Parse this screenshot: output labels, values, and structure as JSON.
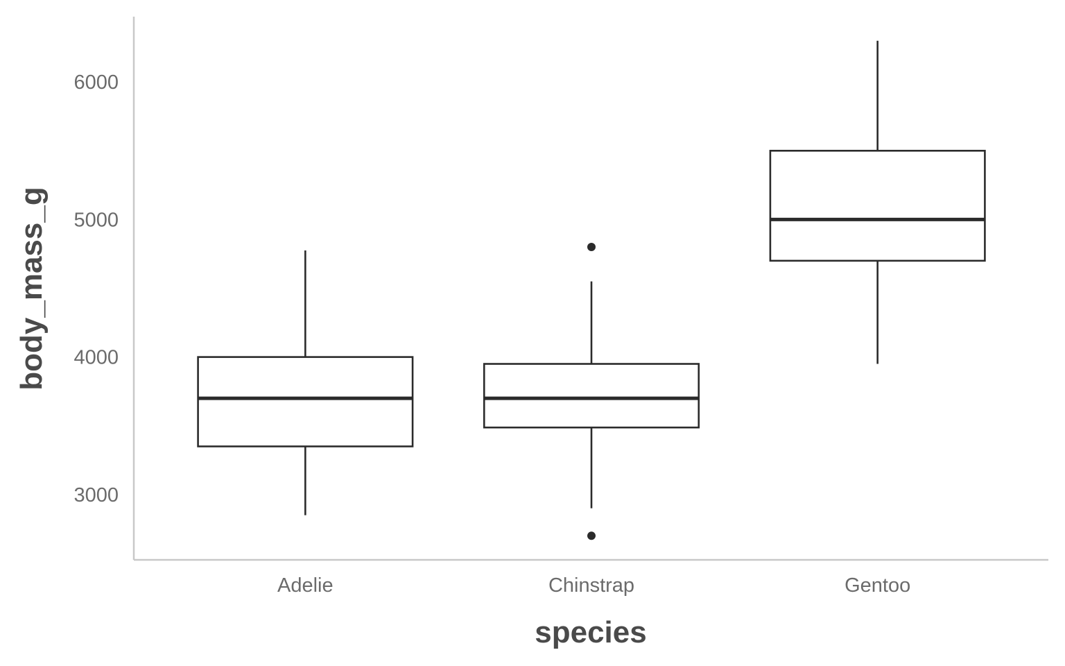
{
  "chart_data": {
    "type": "boxplot",
    "xlabel": "species",
    "ylabel": "body_mass_g",
    "categories": [
      "Adelie",
      "Chinstrap",
      "Gentoo"
    ],
    "ylim": [
      2525,
      6475
    ],
    "yticks": [
      3000,
      4000,
      5000,
      6000
    ],
    "ytick_labels": [
      "3000",
      "4000",
      "5000",
      "6000"
    ],
    "grid": false,
    "boxes": [
      {
        "category": "Adelie",
        "whisker_low": 2850,
        "q1": 3350,
        "median": 3700,
        "q3": 4000,
        "whisker_high": 4775,
        "outliers": []
      },
      {
        "category": "Chinstrap",
        "whisker_low": 2900,
        "q1": 3487.5,
        "median": 3700,
        "q3": 3950,
        "whisker_high": 4550,
        "outliers": [
          2700,
          4800
        ]
      },
      {
        "category": "Gentoo",
        "whisker_low": 3950,
        "q1": 4700,
        "median": 5000,
        "q3": 5500,
        "whisker_high": 6300,
        "outliers": []
      }
    ],
    "colors": {
      "box_stroke": "#2b2b2b",
      "box_fill": "#ffffff",
      "axis": "#c8c8c8",
      "tick_text": "#6b6b6b",
      "title_text": "#4a4a4a"
    }
  }
}
